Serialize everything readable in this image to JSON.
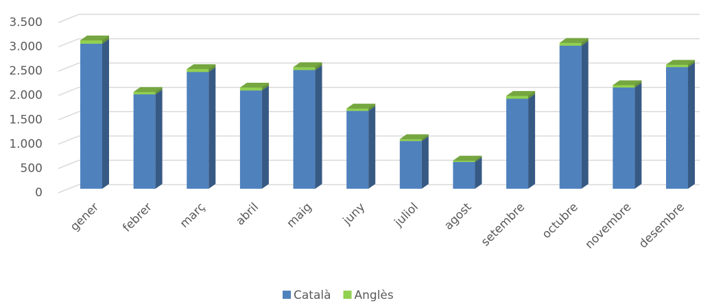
{
  "chart_data": {
    "type": "bar3d_stacked",
    "categories": [
      "gener",
      "febrer",
      "març",
      "abril",
      "maig",
      "juny",
      "juliol",
      "agost",
      "setembre",
      "octubre",
      "novembre",
      "desembre"
    ],
    "series": [
      {
        "name": "Català",
        "color": "#4f81bd",
        "values": [
          2980,
          1940,
          2400,
          2020,
          2440,
          1600,
          980,
          550,
          1850,
          2940,
          2080,
          2500
        ]
      },
      {
        "name": "Anglès",
        "color": "#92d050",
        "values": [
          70,
          50,
          60,
          60,
          60,
          50,
          40,
          30,
          60,
          60,
          50,
          50
        ]
      }
    ],
    "ylim": [
      0,
      3500
    ],
    "yticks": [
      0,
      500,
      {
        "value": 1000,
        "label": "1.000"
      },
      {
        "value": 1500,
        "label": "1.500"
      },
      {
        "value": 2000,
        "label": "2.000"
      },
      {
        "value": 2500,
        "label": "2.500"
      },
      {
        "value": 3000,
        "label": "3.000"
      },
      {
        "value": 3500,
        "label": "3.500"
      }
    ],
    "grid": true,
    "legend": "bottom"
  }
}
